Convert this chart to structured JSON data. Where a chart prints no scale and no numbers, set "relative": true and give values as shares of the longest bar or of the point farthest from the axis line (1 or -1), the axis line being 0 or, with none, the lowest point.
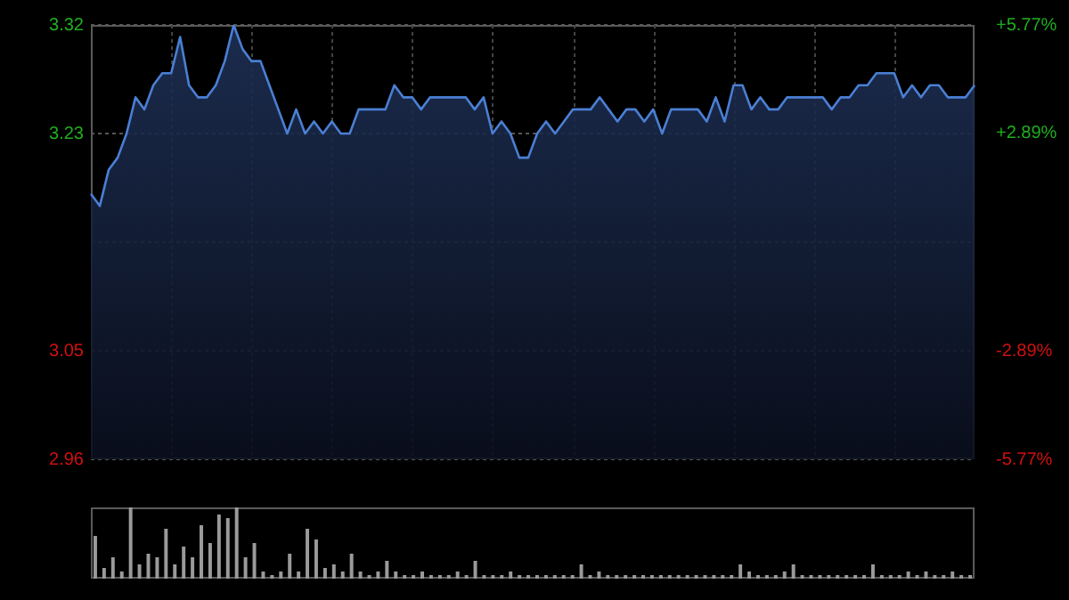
{
  "chart_data": [
    {
      "type": "area",
      "categories": [
        null,
        null,
        null,
        null,
        null,
        null,
        null,
        null,
        null,
        null,
        null,
        null,
        null,
        null,
        null,
        null,
        null,
        null,
        null,
        null,
        null,
        null,
        null,
        null,
        null,
        null,
        null,
        null,
        null,
        null,
        null,
        null,
        null,
        null,
        null,
        null,
        null,
        null,
        null,
        null,
        null,
        null,
        null,
        null,
        null,
        null,
        null,
        null,
        null,
        null,
        null,
        null,
        null,
        null,
        null,
        null,
        null,
        null,
        null,
        null,
        null,
        null,
        null,
        null,
        null,
        null,
        null,
        null,
        null,
        null,
        null,
        null,
        null,
        null,
        null,
        null,
        null,
        null,
        null,
        null,
        null,
        null,
        null,
        null,
        null,
        null,
        null,
        null,
        null,
        null,
        null,
        null,
        null,
        null,
        null,
        null,
        null,
        null,
        null,
        null
      ],
      "series": [
        {
          "color": "#4a7fd4",
          "values": [
            3.18,
            3.17,
            3.2,
            3.21,
            3.23,
            3.26,
            3.25,
            3.27,
            3.28,
            3.28,
            3.31,
            3.27,
            3.26,
            3.26,
            3.27,
            3.29,
            3.32,
            3.3,
            3.29,
            3.29,
            3.27,
            3.25,
            3.23,
            3.25,
            3.23,
            3.24,
            3.23,
            3.24,
            3.23,
            3.23,
            3.25,
            3.25,
            3.25,
            3.25,
            3.27,
            3.26,
            3.26,
            3.25,
            3.26,
            3.26,
            3.26,
            3.26,
            3.26,
            3.25,
            3.26,
            3.23,
            3.24,
            3.23,
            3.21,
            3.21,
            3.23,
            3.24,
            3.23,
            3.24,
            3.25,
            3.25,
            3.25,
            3.26,
            3.25,
            3.24,
            3.25,
            3.25,
            3.24,
            3.25,
            3.23,
            3.25,
            3.25,
            3.25,
            3.25,
            3.24,
            3.26,
            3.24,
            3.27,
            3.27,
            3.25,
            3.26,
            3.25,
            3.25,
            3.26,
            3.26,
            3.26,
            3.26,
            3.26,
            3.25,
            3.26,
            3.26,
            3.27,
            3.27,
            3.28,
            3.28,
            3.28,
            3.26,
            3.27,
            3.26,
            3.27,
            3.27,
            3.26,
            3.26,
            3.26,
            3.27
          ]
        }
      ],
      "ylim": [
        2.96,
        3.32
      ],
      "yticks": [
        2.96,
        3.05,
        {
          "value": 3.14,
          "label": null
        },
        3.23,
        3.32
      ],
      "y2lim": [
        -5.77,
        5.77
      ],
      "y2ticks": [
        {
          "value": -5.77,
          "label": "-5.77%"
        },
        {
          "value": -2.89,
          "label": "-2.89%"
        },
        {
          "value": 2.89,
          "label": "+2.89%"
        },
        {
          "value": 5.77,
          "label": "+5.77%"
        }
      ],
      "tick_labels": "y",
      "grid": true,
      "legend": false,
      "marker": "none"
    },
    {
      "type": "bar",
      "relative": true,
      "categories": [
        null,
        null,
        null,
        null,
        null,
        null,
        null,
        null,
        null,
        null,
        null,
        null,
        null,
        null,
        null,
        null,
        null,
        null,
        null,
        null,
        null,
        null,
        null,
        null,
        null,
        null,
        null,
        null,
        null,
        null,
        null,
        null,
        null,
        null,
        null,
        null,
        null,
        null,
        null,
        null,
        null,
        null,
        null,
        null,
        null,
        null,
        null,
        null,
        null,
        null,
        null,
        null,
        null,
        null,
        null,
        null,
        null,
        null,
        null,
        null,
        null,
        null,
        null,
        null,
        null,
        null,
        null,
        null,
        null,
        null,
        null,
        null,
        null,
        null,
        null,
        null,
        null,
        null,
        null,
        null,
        null,
        null,
        null,
        null,
        null,
        null,
        null,
        null,
        null,
        null,
        null,
        null,
        null,
        null,
        null,
        null,
        null,
        null,
        null,
        null
      ],
      "series": [
        {
          "color": "#9a9a9a",
          "values": [
            0.6,
            0.15,
            0.3,
            0.1,
            1.0,
            0.2,
            0.35,
            0.3,
            0.7,
            0.2,
            0.45,
            0.3,
            0.75,
            0.5,
            0.9,
            0.85,
            1.0,
            0.3,
            0.5,
            0.1,
            0.05,
            0.1,
            0.35,
            0.1,
            0.7,
            0.55,
            0.15,
            0.2,
            0.1,
            0.35,
            0.1,
            0.05,
            0.1,
            0.25,
            0.1,
            0.05,
            0.05,
            0.1,
            0.05,
            0.05,
            0.05,
            0.1,
            0.05,
            0.25,
            0.05,
            0.05,
            0.05,
            0.1,
            0.05,
            0.05,
            0.05,
            0.05,
            0.05,
            0.05,
            0.05,
            0.2,
            0.05,
            0.1,
            0.05,
            0.05,
            0.05,
            0.05,
            0.05,
            0.05,
            0.05,
            0.05,
            0.05,
            0.05,
            0.05,
            0.05,
            0.05,
            0.05,
            0.05,
            0.2,
            0.1,
            0.05,
            0.05,
            0.05,
            0.1,
            0.2,
            0.05,
            0.05,
            0.05,
            0.05,
            0.05,
            0.05,
            0.05,
            0.05,
            0.2,
            0.05,
            0.05,
            0.05,
            0.1,
            0.05,
            0.1,
            0.05,
            0.05,
            0.1,
            0.05,
            0.05
          ]
        }
      ],
      "tick_labels": false,
      "grid": false,
      "legend": false
    }
  ]
}
